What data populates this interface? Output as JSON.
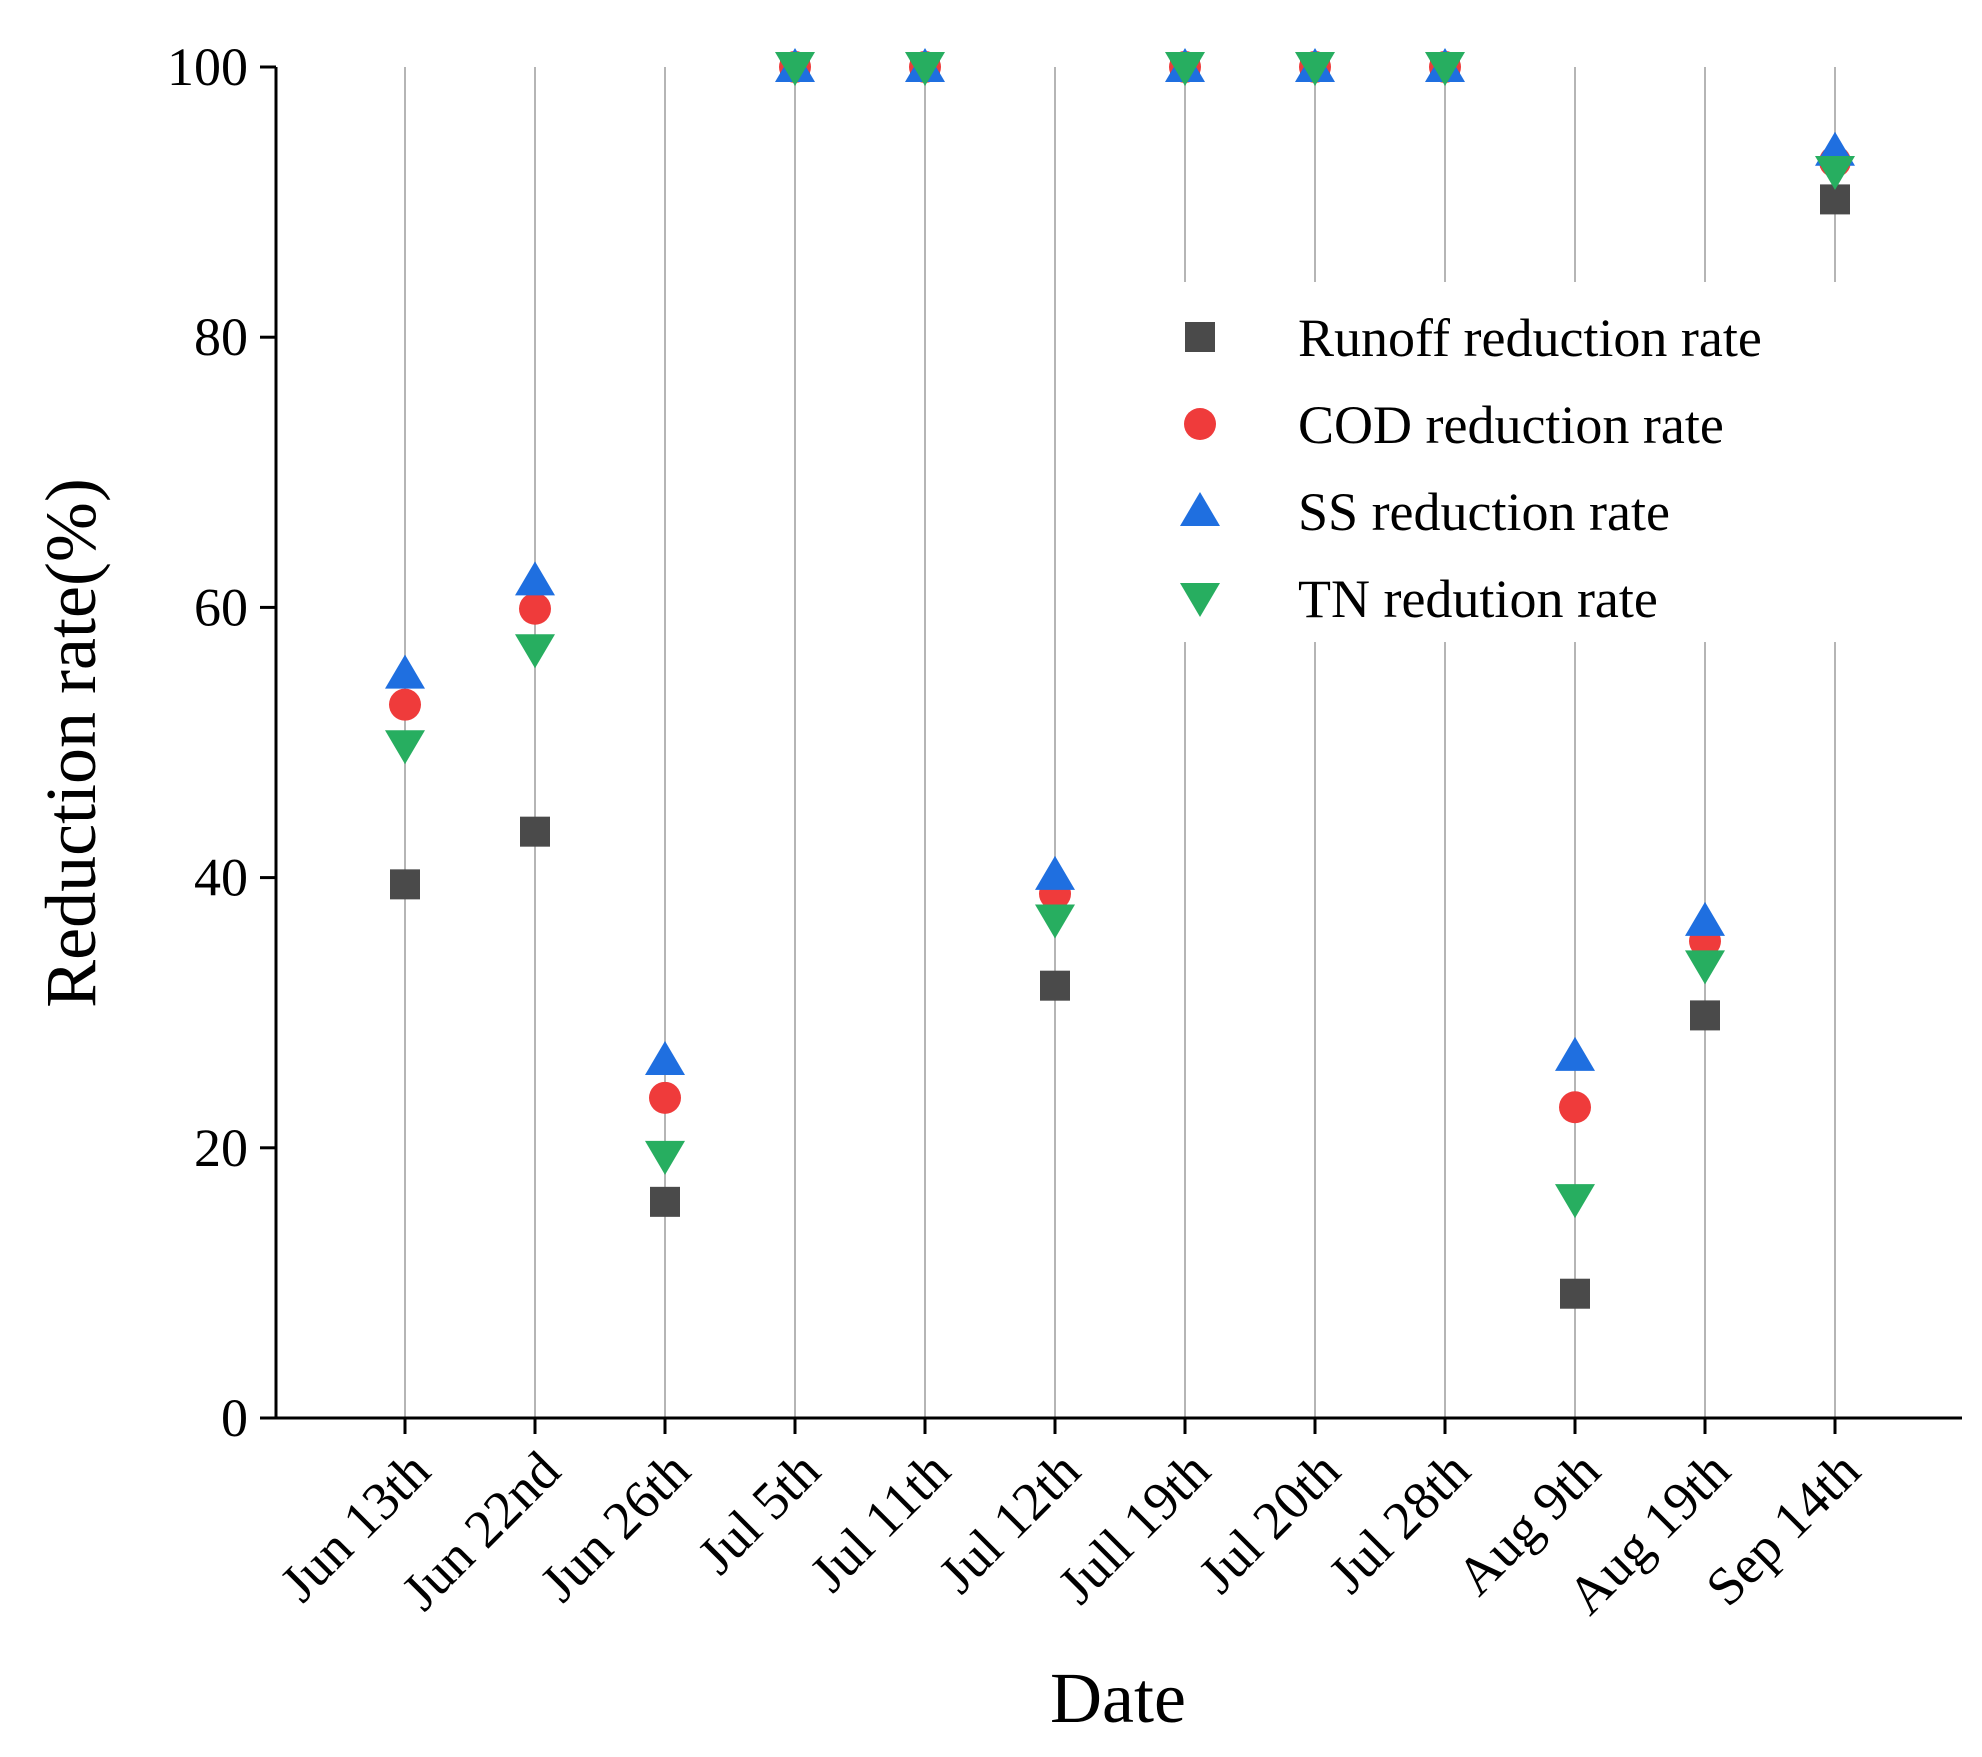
{
  "chart_data": {
    "type": "scatter",
    "title": "",
    "xlabel": "Date",
    "ylabel": "Reduction rate(%)",
    "ylim": [
      0,
      100
    ],
    "yticks": [
      0,
      20,
      40,
      60,
      80,
      100
    ],
    "grid": "vertical",
    "legend_position": "top-right",
    "categories": [
      "Jun 13th",
      "Jun 22nd",
      "Jun 26th",
      "Jul 5th",
      "Jul 11th",
      "Jul 12th",
      "Jull 19th",
      "Jul 20th",
      "Jul 28th",
      "Aug 9th",
      "Aug 19th",
      "Sep 14th"
    ],
    "series": [
      {
        "name": "Runoff reduction rate",
        "marker": "square",
        "color": "#4a4a4a",
        "values": [
          39.5,
          43.4,
          16.0,
          100,
          100,
          32.0,
          100,
          100,
          100,
          9.2,
          29.8,
          90.2
        ]
      },
      {
        "name": "COD reduction rate",
        "marker": "circle",
        "color": "#ef3b3b",
        "values": [
          52.8,
          59.9,
          23.7,
          100,
          100,
          38.8,
          100,
          100,
          100,
          23.0,
          35.3,
          93.0
        ]
      },
      {
        "name": "SS reduction rate",
        "marker": "triangle-up",
        "color": "#1f6fe0",
        "values": [
          55.1,
          62.0,
          26.5,
          100,
          100,
          40.2,
          100,
          100,
          100,
          26.8,
          36.8,
          93.8
        ]
      },
      {
        "name": "TN redution rate",
        "marker": "triangle-down",
        "color": "#27ae60",
        "values": [
          49.8,
          56.9,
          19.4,
          100,
          100,
          36.9,
          100,
          100,
          100,
          16.2,
          33.5,
          92.3
        ]
      }
    ]
  }
}
